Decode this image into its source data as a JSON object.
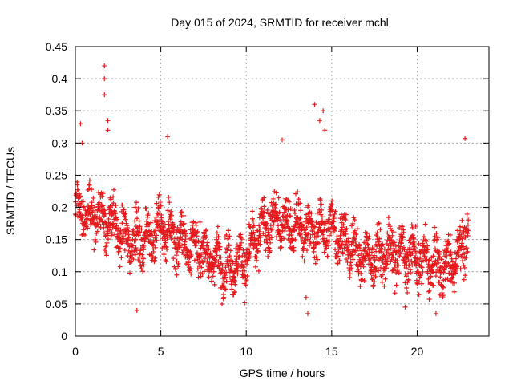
{
  "chart_data": {
    "type": "scatter",
    "title": "Day 015 of 2024, SRMTID for receiver mchl",
    "xlabel": "GPS time / hours",
    "ylabel": "SRMTID / TECUs",
    "xlim": [
      0,
      24.2
    ],
    "ylim": [
      0,
      0.45
    ],
    "xticks": [
      0,
      5,
      10,
      15,
      20
    ],
    "yticks": [
      0,
      0.05,
      0.1,
      0.15,
      0.2,
      0.25,
      0.3,
      0.35,
      0.4,
      0.45
    ],
    "xtick_labels": [
      "0",
      "5",
      "10",
      "15",
      "20"
    ],
    "ytick_labels": [
      "0",
      "0.05",
      "0.1",
      "0.15",
      "0.2",
      "0.25",
      "0.3",
      "0.35",
      "0.4",
      "0.45"
    ],
    "grid": true,
    "marker": "plus",
    "color": "#e41a1c",
    "series": [
      {
        "name": "SRMTID",
        "x_range": [
          0,
          23
        ],
        "approx_points": 2000,
        "trend": [
          {
            "x": 0,
            "y": 0.2
          },
          {
            "x": 1,
            "y": 0.19
          },
          {
            "x": 2,
            "y": 0.18
          },
          {
            "x": 3,
            "y": 0.15
          },
          {
            "x": 4,
            "y": 0.15
          },
          {
            "x": 5,
            "y": 0.17
          },
          {
            "x": 6,
            "y": 0.15
          },
          {
            "x": 7,
            "y": 0.14
          },
          {
            "x": 8,
            "y": 0.12
          },
          {
            "x": 9,
            "y": 0.11
          },
          {
            "x": 10,
            "y": 0.12
          },
          {
            "x": 11,
            "y": 0.17
          },
          {
            "x": 12,
            "y": 0.18
          },
          {
            "x": 13,
            "y": 0.17
          },
          {
            "x": 14,
            "y": 0.16
          },
          {
            "x": 15,
            "y": 0.17
          },
          {
            "x": 16,
            "y": 0.14
          },
          {
            "x": 17,
            "y": 0.12
          },
          {
            "x": 18,
            "y": 0.13
          },
          {
            "x": 19,
            "y": 0.13
          },
          {
            "x": 20,
            "y": 0.12
          },
          {
            "x": 21,
            "y": 0.11
          },
          {
            "x": 22,
            "y": 0.11
          },
          {
            "x": 23,
            "y": 0.16
          }
        ],
        "spread": 0.05,
        "highlights": [
          {
            "x": 1.7,
            "y": 0.42
          },
          {
            "x": 1.7,
            "y": 0.4
          },
          {
            "x": 1.7,
            "y": 0.375
          },
          {
            "x": 1.9,
            "y": 0.335
          },
          {
            "x": 1.9,
            "y": 0.32
          },
          {
            "x": 0.3,
            "y": 0.33
          },
          {
            "x": 0.4,
            "y": 0.3
          },
          {
            "x": 14.0,
            "y": 0.36
          },
          {
            "x": 14.3,
            "y": 0.335
          },
          {
            "x": 14.5,
            "y": 0.35
          },
          {
            "x": 14.6,
            "y": 0.32
          },
          {
            "x": 12.1,
            "y": 0.305
          },
          {
            "x": 5.4,
            "y": 0.31
          },
          {
            "x": 22.8,
            "y": 0.307
          },
          {
            "x": 13.5,
            "y": 0.06
          },
          {
            "x": 13.6,
            "y": 0.035
          },
          {
            "x": 3.6,
            "y": 0.04
          },
          {
            "x": 21.1,
            "y": 0.035
          },
          {
            "x": 19.3,
            "y": 0.045
          }
        ]
      }
    ]
  }
}
